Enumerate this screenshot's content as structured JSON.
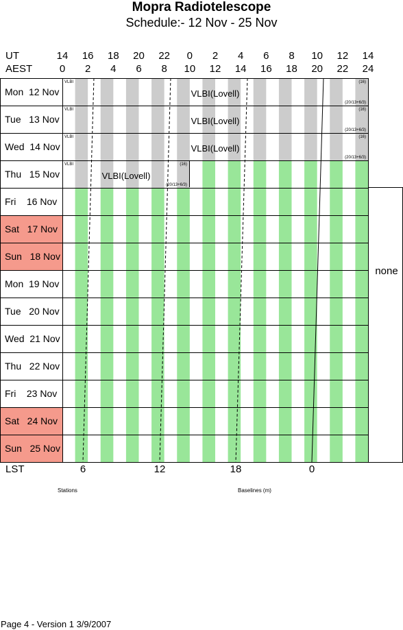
{
  "title": "Mopra Radiotelescope",
  "subtitle": "Schedule:- 12 Nov - 25 Nov",
  "header": {
    "ut_label": "UT",
    "aest_label": "AEST",
    "ut_ticks": [
      "14",
      "16",
      "18",
      "20",
      "22",
      "0",
      "2",
      "4",
      "6",
      "8",
      "10",
      "12",
      "14"
    ],
    "aest_ticks": [
      "0",
      "2",
      "4",
      "6",
      "8",
      "10",
      "12",
      "14",
      "16",
      "18",
      "20",
      "22",
      "24"
    ]
  },
  "days": [
    {
      "label": "Mon  12 Nov",
      "weekend": false
    },
    {
      "label": "Tue   13 Nov",
      "weekend": false
    },
    {
      "label": "Wed  14 Nov",
      "weekend": false
    },
    {
      "label": "Thu   15 Nov",
      "weekend": false
    },
    {
      "label": "Fri    16 Nov",
      "weekend": false
    },
    {
      "label": "Sat   17 Nov",
      "weekend": true
    },
    {
      "label": "Sun   18 Nov",
      "weekend": true
    },
    {
      "label": "Mon  19 Nov",
      "weekend": false
    },
    {
      "label": "Tue   20 Nov",
      "weekend": false
    },
    {
      "label": "Wed  21 Nov",
      "weekend": false
    },
    {
      "label": "Thu   22 Nov",
      "weekend": false
    },
    {
      "label": "Fri    23 Nov",
      "weekend": false
    },
    {
      "label": "Sat   24 Nov",
      "weekend": true
    },
    {
      "label": "Sun   25 Nov",
      "weekend": true
    }
  ],
  "bookings": [
    {
      "day_index": 0,
      "tag": "VLBI",
      "label": "VLBI(Lovell)",
      "code": "(16)",
      "note": "(20/13+6/3)"
    },
    {
      "day_index": 1,
      "tag": "VLBI",
      "label": "VLBI(Lovell)",
      "code": "(16)",
      "note": "(20/13+6/3)"
    },
    {
      "day_index": 2,
      "tag": "VLBI",
      "label": "VLBI(Lovell)",
      "code": "(16)",
      "note": "(20/13+6/3)"
    },
    {
      "day_index": 3,
      "tag": "VLBI",
      "label": "VLBI(Lovell)",
      "code": "(16)",
      "note": "(20/13+6/3)"
    }
  ],
  "side_label": "none",
  "lst": {
    "label": "LST",
    "ticks": [
      "6",
      "12",
      "18",
      "0"
    ]
  },
  "bottom_labels": {
    "stations": "Stations",
    "baselines": "Baselines (m)"
  },
  "footer": "Page 4 - Version 1  3/9/2007",
  "colors": {
    "weekend": "#f59a8c",
    "available": "#99e699",
    "booked": "#cccccc",
    "grid": "#000000"
  }
}
